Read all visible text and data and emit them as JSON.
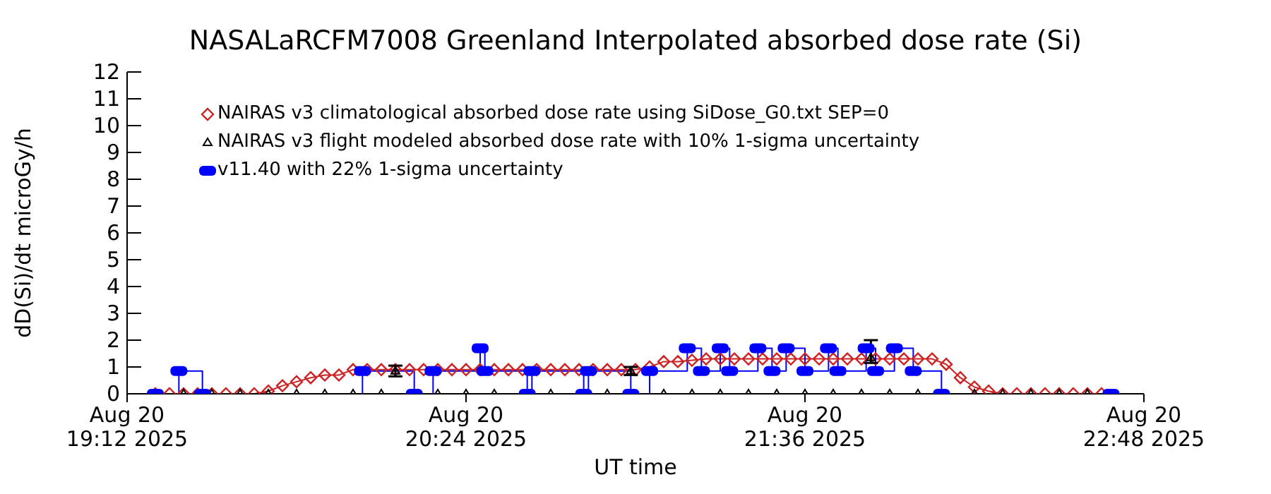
{
  "chart_data": {
    "type": "line",
    "title": "NASALaRCFM7008  Greenland Interpolated absorbed dose rate (Si)",
    "xlabel": "UT time",
    "ylabel": "dD(Si)/dt microGy/h",
    "xlim": [
      "2025-08-20T19:12",
      "2025-08-20T22:48"
    ],
    "xticks": [
      {
        "value": "2025-08-20T19:12",
        "label": "Aug 20\n19:12 2025"
      },
      {
        "value": "2025-08-20T20:24",
        "label": "Aug 20\n20:24 2025"
      },
      {
        "value": "2025-08-20T21:36",
        "label": "Aug 20\n21:36 2025"
      },
      {
        "value": "2025-08-20T22:48",
        "label": "Aug 20\n22:48 2025"
      }
    ],
    "ylim": [
      0,
      12
    ],
    "yticks": [
      0,
      1,
      2,
      3,
      4,
      5,
      6,
      7,
      8,
      9,
      10,
      11,
      12
    ],
    "grid": false,
    "legend": "top left",
    "series": [
      {
        "name": "NAIRAS v3 climatological absorbed dose rate using SiDose_G0.txt SEP=0",
        "marker": "diamond",
        "color": "#cc2222",
        "x": [
          "2025-08-20T19:18",
          "2025-08-20T19:21",
          "2025-08-20T19:24",
          "2025-08-20T19:27",
          "2025-08-20T19:30",
          "2025-08-20T19:33",
          "2025-08-20T19:36",
          "2025-08-20T19:39",
          "2025-08-20T19:42",
          "2025-08-20T19:45",
          "2025-08-20T19:48",
          "2025-08-20T19:51",
          "2025-08-20T19:54",
          "2025-08-20T19:57",
          "2025-08-20T20:00",
          "2025-08-20T20:03",
          "2025-08-20T20:06",
          "2025-08-20T20:09",
          "2025-08-20T20:12",
          "2025-08-20T20:15",
          "2025-08-20T20:18",
          "2025-08-20T20:21",
          "2025-08-20T20:24",
          "2025-08-20T20:27",
          "2025-08-20T20:30",
          "2025-08-20T20:33",
          "2025-08-20T20:36",
          "2025-08-20T20:39",
          "2025-08-20T20:42",
          "2025-08-20T20:45",
          "2025-08-20T20:48",
          "2025-08-20T20:51",
          "2025-08-20T20:54",
          "2025-08-20T20:57",
          "2025-08-20T21:00",
          "2025-08-20T21:03",
          "2025-08-20T21:06",
          "2025-08-20T21:09",
          "2025-08-20T21:12",
          "2025-08-20T21:15",
          "2025-08-20T21:18",
          "2025-08-20T21:21",
          "2025-08-20T21:24",
          "2025-08-20T21:27",
          "2025-08-20T21:30",
          "2025-08-20T21:33",
          "2025-08-20T21:36",
          "2025-08-20T21:39",
          "2025-08-20T21:42",
          "2025-08-20T21:45",
          "2025-08-20T21:48",
          "2025-08-20T21:51",
          "2025-08-20T21:54",
          "2025-08-20T21:57",
          "2025-08-20T22:00",
          "2025-08-20T22:03",
          "2025-08-20T22:06",
          "2025-08-20T22:09",
          "2025-08-20T22:12",
          "2025-08-20T22:15",
          "2025-08-20T22:18",
          "2025-08-20T22:21",
          "2025-08-20T22:24",
          "2025-08-20T22:27",
          "2025-08-20T22:30",
          "2025-08-20T22:33",
          "2025-08-20T22:36",
          "2025-08-20T22:39"
        ],
        "values": [
          0,
          0,
          0,
          0,
          0,
          0,
          0,
          0,
          0.1,
          0.3,
          0.45,
          0.6,
          0.7,
          0.7,
          0.9,
          0.9,
          0.9,
          0.9,
          0.9,
          0.9,
          0.9,
          0.9,
          0.9,
          0.9,
          0.9,
          0.9,
          0.9,
          0.9,
          0.9,
          0.9,
          0.9,
          0.9,
          0.9,
          0.9,
          0.9,
          1.0,
          1.2,
          1.2,
          1.25,
          1.3,
          1.3,
          1.3,
          1.3,
          1.3,
          1.3,
          1.3,
          1.3,
          1.3,
          1.3,
          1.3,
          1.3,
          1.3,
          1.3,
          1.3,
          1.3,
          1.3,
          1.1,
          0.6,
          0.25,
          0.1,
          0,
          0,
          0,
          0,
          0,
          0,
          0,
          0
        ]
      },
      {
        "name": "NAIRAS v3 flight modeled absorbed dose rate with 10% 1-sigma uncertainty",
        "type": "scatter",
        "marker": "triangle",
        "color": "#000000",
        "x": [
          "2025-08-20T19:24",
          "2025-08-20T19:30",
          "2025-08-20T19:36",
          "2025-08-20T19:42",
          "2025-08-20T19:48",
          "2025-08-20T19:54",
          "2025-08-20T20:00",
          "2025-08-20T20:06",
          "2025-08-20T20:09",
          "2025-08-20T20:18",
          "2025-08-20T20:24",
          "2025-08-20T20:30",
          "2025-08-20T20:42",
          "2025-08-20T20:54",
          "2025-08-20T20:59",
          "2025-08-20T21:06",
          "2025-08-20T21:12",
          "2025-08-20T21:18",
          "2025-08-20T21:24",
          "2025-08-20T21:30",
          "2025-08-20T21:36",
          "2025-08-20T21:42",
          "2025-08-20T21:48",
          "2025-08-20T21:50",
          "2025-08-20T21:54",
          "2025-08-20T22:00",
          "2025-08-20T22:12",
          "2025-08-20T22:18",
          "2025-08-20T22:24",
          "2025-08-20T22:30",
          "2025-08-20T22:36"
        ],
        "values": [
          0,
          0,
          0,
          0,
          0,
          0,
          0,
          0,
          0.85,
          0,
          0,
          0,
          0,
          0,
          0.85,
          0,
          0,
          0,
          0,
          0,
          0,
          0,
          0,
          1.35,
          0,
          0,
          0,
          0,
          0,
          0,
          0
        ],
        "errors": [
          null,
          null,
          null,
          null,
          null,
          null,
          null,
          null,
          [
            0.65,
            1.05
          ],
          null,
          null,
          null,
          null,
          null,
          [
            0.7,
            1.0
          ],
          null,
          null,
          null,
          null,
          null,
          null,
          null,
          null,
          [
            1.15,
            2.0
          ],
          null,
          null,
          null,
          null,
          null,
          null,
          null
        ]
      },
      {
        "name": "v11.40 with 22% 1-sigma uncertainty",
        "type": "step",
        "marker": "square",
        "color": "#0000ff",
        "x": [
          "2025-08-20T19:18",
          "2025-08-20T19:23",
          "2025-08-20T19:28",
          "2025-08-20T20:02",
          "2025-08-20T20:13",
          "2025-08-20T20:17",
          "2025-08-20T20:27",
          "2025-08-20T20:28",
          "2025-08-20T20:37",
          "2025-08-20T20:38",
          "2025-08-20T20:49",
          "2025-08-20T20:50",
          "2025-08-20T20:59",
          "2025-08-20T21:03",
          "2025-08-20T21:11",
          "2025-08-20T21:14",
          "2025-08-20T21:18",
          "2025-08-20T21:20",
          "2025-08-20T21:26",
          "2025-08-20T21:29",
          "2025-08-20T21:32",
          "2025-08-20T21:36",
          "2025-08-20T21:41",
          "2025-08-20T21:43",
          "2025-08-20T21:49",
          "2025-08-20T21:51",
          "2025-08-20T21:55",
          "2025-08-20T21:59",
          "2025-08-20T22:05",
          "2025-08-20T22:41"
        ],
        "values": [
          0,
          0.85,
          0,
          0.85,
          0,
          0.85,
          1.7,
          0.85,
          0,
          0.85,
          0,
          0.85,
          0,
          0.85,
          1.7,
          0.85,
          1.7,
          0.85,
          1.7,
          0.85,
          1.7,
          0.85,
          1.7,
          0.85,
          1.7,
          0.85,
          1.7,
          0.85,
          0,
          0
        ]
      }
    ]
  }
}
